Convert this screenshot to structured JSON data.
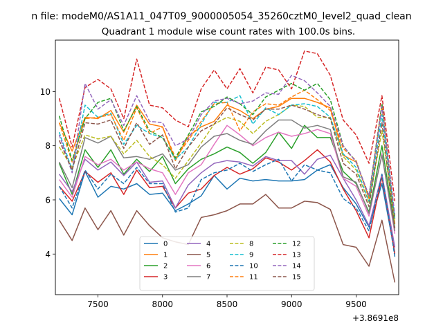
{
  "chart_data": {
    "type": "line",
    "suptitle": "n file: modeM0/AS1A11_047T09_9000005054_35260cztM0_level2_quad_clean",
    "title": "Quadrant 1 module wise count rates with 100.0s bins.",
    "xlabel": "",
    "ylabel": "",
    "x_offset_label": "+3.8691e8",
    "xlim": [
      7170,
      9830
    ],
    "ylim": [
      2.5,
      11.9
    ],
    "xticks": [
      7500,
      8000,
      8500,
      9000,
      9500
    ],
    "xtick_labels": [
      "7500",
      "8000",
      "8500",
      "9000",
      "9500"
    ],
    "yticks": [
      4,
      6,
      8,
      10
    ],
    "ytick_labels": [
      "4",
      "6",
      "8",
      "10"
    ],
    "legend_position": "lower-center",
    "x": [
      7200,
      7300,
      7400,
      7500,
      7600,
      7700,
      7800,
      7900,
      8000,
      8100,
      8200,
      8300,
      8400,
      8500,
      8600,
      8700,
      8800,
      8900,
      9000,
      9100,
      9200,
      9300,
      9400,
      9500,
      9600,
      9700,
      9800
    ],
    "series": [
      {
        "name": "0",
        "color": "#1f77b4",
        "dash": "solid",
        "values": [
          6.05,
          5.45,
          7.05,
          6.1,
          6.5,
          6.4,
          6.6,
          6.2,
          6.25,
          5.6,
          5.85,
          6.15,
          6.9,
          6.4,
          6.8,
          6.7,
          6.75,
          6.7,
          6.7,
          6.75,
          7.1,
          7.3,
          6.45,
          5.85,
          5.0,
          6.6,
          4.05
        ]
      },
      {
        "name": "1",
        "color": "#ff7f0e",
        "dash": "solid",
        "values": [
          8.85,
          7.8,
          9.05,
          9.0,
          9.3,
          8.5,
          9.5,
          8.8,
          8.7,
          7.45,
          8.35,
          8.7,
          8.9,
          9.5,
          9.3,
          9.0,
          9.35,
          9.45,
          9.75,
          9.75,
          9.6,
          9.4,
          7.65,
          7.4,
          6.1,
          9.5,
          5.1
        ]
      },
      {
        "name": "2",
        "color": "#2ca02c",
        "dash": "solid",
        "values": [
          7.35,
          6.2,
          7.85,
          7.2,
          7.85,
          6.95,
          7.5,
          7.05,
          7.6,
          6.6,
          7.15,
          7.5,
          7.7,
          7.95,
          7.75,
          7.35,
          7.75,
          8.5,
          7.9,
          8.75,
          8.3,
          8.3,
          7.05,
          6.6,
          5.55,
          8.0,
          4.95
        ]
      },
      {
        "name": "3",
        "color": "#d62728",
        "dash": "solid",
        "values": [
          6.5,
          5.95,
          7.05,
          6.65,
          7.0,
          6.2,
          7.1,
          6.45,
          6.5,
          5.7,
          6.25,
          6.4,
          6.9,
          7.2,
          6.95,
          7.15,
          7.55,
          7.4,
          7.1,
          7.45,
          7.85,
          7.4,
          6.4,
          5.6,
          4.6,
          6.85,
          4.0
        ]
      },
      {
        "name": "4",
        "color": "#9467bd",
        "dash": "solid",
        "values": [
          6.95,
          6.3,
          7.5,
          7.1,
          7.4,
          6.9,
          7.4,
          6.65,
          6.7,
          5.7,
          6.55,
          7.0,
          7.35,
          7.45,
          7.4,
          7.25,
          7.6,
          7.45,
          7.45,
          6.95,
          7.5,
          7.65,
          6.8,
          6.0,
          5.05,
          6.95,
          4.25
        ]
      },
      {
        "name": "5",
        "color": "#8c564b",
        "dash": "solid",
        "values": [
          5.25,
          4.5,
          5.7,
          4.9,
          5.6,
          4.7,
          5.6,
          5.05,
          4.6,
          4.45,
          4.35,
          5.35,
          5.45,
          5.6,
          5.85,
          5.85,
          6.2,
          5.7,
          5.7,
          5.95,
          5.9,
          5.65,
          4.35,
          4.25,
          3.55,
          5.25,
          2.95
        ]
      },
      {
        "name": "6",
        "color": "#e377c2",
        "dash": "solid",
        "values": [
          6.75,
          6.1,
          7.6,
          7.3,
          7.5,
          7.1,
          7.4,
          7.15,
          7.0,
          6.2,
          7.0,
          7.3,
          8.05,
          8.75,
          8.4,
          8.0,
          8.3,
          8.5,
          8.35,
          8.45,
          8.6,
          8.45,
          6.8,
          6.5,
          5.4,
          7.7,
          4.75
        ]
      },
      {
        "name": "7",
        "color": "#7f7f7f",
        "dash": "solid",
        "values": [
          7.4,
          6.45,
          8.3,
          8.1,
          8.35,
          7.55,
          7.6,
          7.5,
          7.7,
          7.1,
          7.3,
          7.95,
          8.35,
          8.45,
          8.2,
          8.05,
          8.55,
          8.95,
          8.95,
          8.65,
          8.75,
          8.6,
          6.85,
          6.65,
          5.5,
          7.65,
          4.85
        ]
      },
      {
        "name": "8",
        "color": "#bcbd22",
        "dash": "dashed",
        "values": [
          7.95,
          7.2,
          8.4,
          8.25,
          8.35,
          7.7,
          8.2,
          7.6,
          7.3,
          6.8,
          7.45,
          8.1,
          8.8,
          9.05,
          8.9,
          8.45,
          8.9,
          9.15,
          9.5,
          9.45,
          9.05,
          9.05,
          7.6,
          7.1,
          5.9,
          8.55,
          5.15
        ]
      },
      {
        "name": "9",
        "color": "#17becf",
        "dash": "dashed",
        "values": [
          8.5,
          7.1,
          9.5,
          9.05,
          9.2,
          8.05,
          8.75,
          8.45,
          8.3,
          7.5,
          7.95,
          8.8,
          9.6,
          9.6,
          9.85,
          8.8,
          9.4,
          9.15,
          9.5,
          9.55,
          9.45,
          9.05,
          7.7,
          7.2,
          5.95,
          9.15,
          5.3
        ]
      },
      {
        "name": "10",
        "color": "#1f77b4",
        "dash": "dashed",
        "values": [
          6.5,
          5.7,
          7.1,
          6.4,
          6.95,
          6.6,
          7.2,
          6.6,
          6.6,
          5.55,
          5.7,
          6.75,
          7.0,
          7.1,
          7.35,
          7.05,
          7.3,
          7.5,
          6.7,
          7.3,
          7.1,
          7.0,
          6.05,
          5.7,
          4.85,
          6.95,
          3.9
        ]
      },
      {
        "name": "11",
        "color": "#ff7f0e",
        "dash": "dashed",
        "values": [
          8.85,
          7.4,
          9.0,
          9.05,
          9.15,
          8.2,
          9.4,
          8.45,
          8.7,
          7.55,
          8.2,
          8.9,
          9.55,
          9.6,
          8.55,
          9.25,
          9.55,
          9.5,
          9.8,
          10.05,
          9.7,
          9.3,
          7.9,
          7.45,
          6.05,
          9.55,
          5.3
        ]
      },
      {
        "name": "12",
        "color": "#2ca02c",
        "dash": "dashed",
        "values": [
          9.1,
          7.45,
          9.0,
          9.6,
          9.75,
          8.55,
          9.45,
          8.55,
          8.3,
          7.55,
          8.4,
          9.25,
          9.45,
          9.8,
          9.55,
          9.15,
          9.8,
          10.05,
          10.3,
          10.05,
          10.3,
          9.7,
          8.0,
          7.4,
          6.15,
          9.55,
          5.35
        ]
      },
      {
        "name": "13",
        "color": "#d62728",
        "dash": "dashed",
        "values": [
          9.75,
          7.95,
          10.15,
          10.45,
          10.1,
          9.0,
          11.2,
          9.5,
          9.4,
          8.95,
          8.7,
          10.1,
          10.8,
          10.1,
          10.85,
          9.95,
          10.9,
          10.8,
          10.1,
          11.5,
          11.4,
          10.6,
          8.95,
          8.4,
          7.35,
          9.85,
          5.95
        ]
      },
      {
        "name": "14",
        "color": "#9467bd",
        "dash": "dashed",
        "values": [
          8.4,
          7.0,
          10.3,
          9.35,
          9.7,
          8.75,
          9.85,
          8.9,
          8.85,
          8.0,
          8.25,
          9.15,
          9.65,
          9.75,
          9.55,
          9.65,
          9.95,
          9.9,
          10.6,
          10.4,
          9.95,
          9.45,
          8.0,
          7.4,
          6.15,
          9.45,
          5.45
        ]
      },
      {
        "name": "15",
        "color": "#8c564b",
        "dash": "dashed",
        "values": [
          8.2,
          7.1,
          8.85,
          8.8,
          8.95,
          7.9,
          8.85,
          8.05,
          8.4,
          7.15,
          7.95,
          8.55,
          8.8,
          9.4,
          9.15,
          8.95,
          9.35,
          9.35,
          9.5,
          9.35,
          9.15,
          9.0,
          7.35,
          6.95,
          5.75,
          8.85,
          4.95
        ]
      }
    ]
  }
}
